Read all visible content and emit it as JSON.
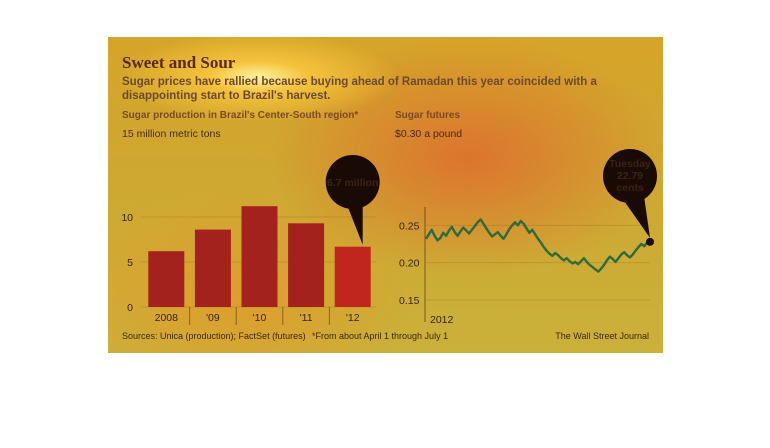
{
  "header": {
    "title": "Sweet and Sour",
    "subtitle": "Sugar prices have rallied because buying ahead of Ramadan this year coincided with a disappointing start to Brazil's harvest."
  },
  "left_panel": {
    "heading": "Sugar production in Brazil's Center-South region*",
    "unit": "15 million metric tons"
  },
  "right_panel": {
    "heading": "Sugar futures",
    "unit": "$0.30 a pound"
  },
  "footer": {
    "sources": "Sources: Unica (production); FactSet (futures)",
    "footnote": "*From about April 1 through July 1",
    "credit": "The Wall Street Journal"
  },
  "colors": {
    "bar": "#a3221e",
    "bar_highlight": "#c0261e",
    "line": "#2e6b3a",
    "callout": "#1a0a06"
  },
  "chart_data": [
    {
      "type": "bar",
      "categories": [
        "2008",
        "'09",
        "'10",
        "'11",
        "'12"
      ],
      "values": [
        6.2,
        8.6,
        11.2,
        9.3,
        6.7
      ],
      "ylim": [
        0,
        15
      ],
      "yticks": [
        "0",
        "5",
        "10"
      ],
      "annotation": {
        "text": "6.7 million",
        "category": "'12"
      }
    },
    {
      "type": "line",
      "xlabel_tick": "2012",
      "ylim": [
        0.15,
        0.3
      ],
      "yticks": [
        "0.15",
        "0.20",
        "0.25"
      ],
      "values": [
        0.232,
        0.238,
        0.244,
        0.236,
        0.23,
        0.233,
        0.24,
        0.236,
        0.243,
        0.248,
        0.241,
        0.236,
        0.242,
        0.247,
        0.243,
        0.239,
        0.244,
        0.249,
        0.254,
        0.258,
        0.252,
        0.246,
        0.24,
        0.235,
        0.238,
        0.241,
        0.236,
        0.232,
        0.238,
        0.245,
        0.25,
        0.254,
        0.25,
        0.256,
        0.252,
        0.246,
        0.24,
        0.244,
        0.238,
        0.232,
        0.227,
        0.221,
        0.216,
        0.212,
        0.209,
        0.213,
        0.21,
        0.206,
        0.203,
        0.206,
        0.202,
        0.199,
        0.201,
        0.198,
        0.202,
        0.206,
        0.201,
        0.197,
        0.194,
        0.191,
        0.188,
        0.192,
        0.197,
        0.203,
        0.208,
        0.205,
        0.201,
        0.206,
        0.211,
        0.214,
        0.21,
        0.207,
        0.211,
        0.216,
        0.221,
        0.225,
        0.222,
        0.227,
        0.2279
      ],
      "annotation": {
        "label": "Tuesday",
        "value": "22.79",
        "unit": "cents"
      }
    }
  ]
}
